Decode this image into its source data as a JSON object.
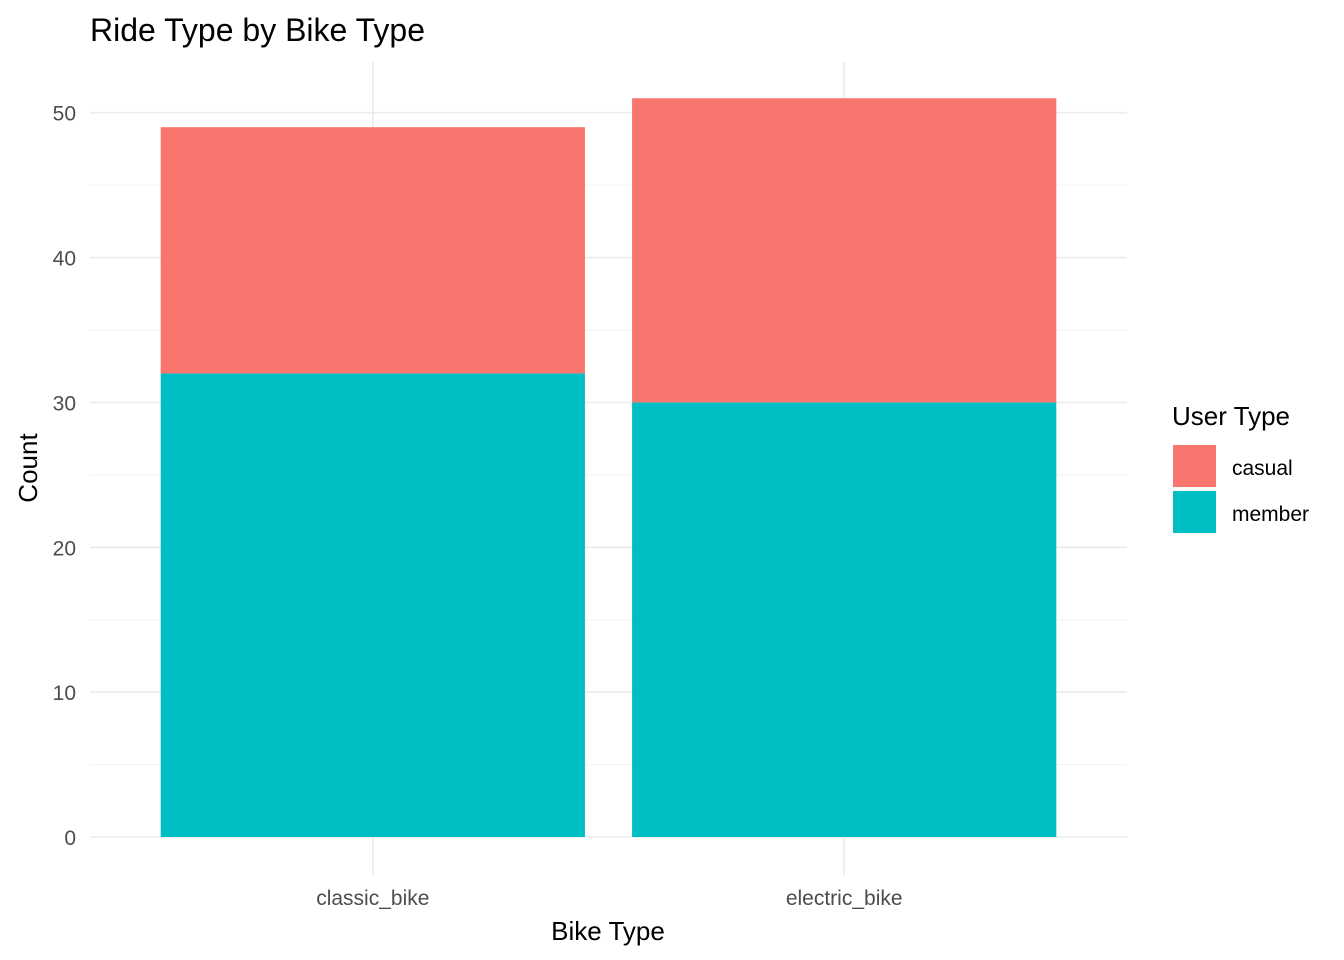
{
  "chart_data": {
    "type": "bar",
    "stacked": true,
    "title": "Ride Type by Bike Type",
    "xlabel": "Bike Type",
    "ylabel": "Count",
    "categories": [
      "classic_bike",
      "electric_bike"
    ],
    "series": [
      {
        "name": "member",
        "values": [
          32,
          30
        ],
        "color": "#00BFC4"
      },
      {
        "name": "casual",
        "values": [
          17,
          21
        ],
        "color": "#F8766D"
      }
    ],
    "ylim": [
      0,
      53.5
    ],
    "yticks": [
      0,
      10,
      20,
      30,
      40,
      50
    ],
    "grid": true,
    "legend": {
      "title": "User Type",
      "placement": "right",
      "order": [
        "casual",
        "member"
      ]
    }
  }
}
